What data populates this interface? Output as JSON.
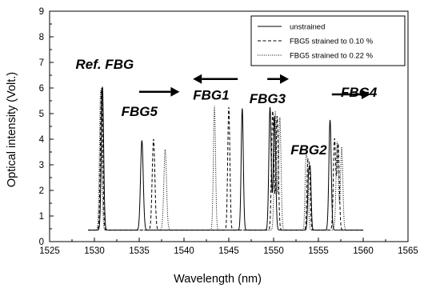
{
  "chart_data": {
    "type": "line",
    "xlabel": "Wavelength (nm)",
    "ylabel": "Optical intensity (Volt.)",
    "xlim": [
      1525,
      1565
    ],
    "ylim": [
      0,
      9
    ],
    "xticks": [
      1525,
      1530,
      1535,
      1540,
      1545,
      1550,
      1555,
      1560,
      1565
    ],
    "yticks": [
      0,
      1,
      2,
      3,
      4,
      5,
      6,
      7,
      8,
      9
    ],
    "grid": false,
    "legend_position": "top-right",
    "baseline": 0.45,
    "x_start": 1529.3,
    "x_end": 1560.0,
    "series": [
      {
        "name": "unstrained",
        "dash": "solid",
        "peaks": [
          [
            1530.9,
            6.05,
            0.13
          ],
          [
            1535.3,
            3.95,
            0.15
          ],
          [
            1546.5,
            5.2,
            0.12
          ],
          [
            1549.6,
            5.25,
            0.13
          ],
          [
            1550.1,
            4.9,
            0.13
          ],
          [
            1553.9,
            2.4,
            0.1
          ],
          [
            1554.1,
            2.6,
            0.1
          ],
          [
            1556.3,
            4.75,
            0.13
          ]
        ]
      },
      {
        "name": "FBG5 strained to 0.10 %",
        "dash": "dashed",
        "peaks": [
          [
            1530.8,
            6.0,
            0.13
          ],
          [
            1536.6,
            4.0,
            0.15
          ],
          [
            1545.0,
            5.25,
            0.12
          ],
          [
            1549.9,
            5.1,
            0.13
          ],
          [
            1550.4,
            4.9,
            0.13
          ],
          [
            1553.8,
            2.8,
            0.1
          ],
          [
            1554.0,
            2.6,
            0.1
          ],
          [
            1556.8,
            4.0,
            0.13
          ],
          [
            1557.2,
            3.8,
            0.13
          ]
        ]
      },
      {
        "name": "FBG5 strained to 0.22 %",
        "dash": "dotted",
        "peaks": [
          [
            1530.7,
            5.9,
            0.13
          ],
          [
            1537.9,
            3.6,
            0.15
          ],
          [
            1543.4,
            5.3,
            0.12
          ],
          [
            1550.2,
            5.1,
            0.13
          ],
          [
            1550.7,
            4.85,
            0.13
          ],
          [
            1553.6,
            3.0,
            0.1
          ],
          [
            1553.8,
            2.7,
            0.1
          ],
          [
            1557.1,
            3.9,
            0.13
          ],
          [
            1557.6,
            3.7,
            0.13
          ]
        ]
      }
    ],
    "annotations": [
      {
        "text": "Ref. FBG",
        "x": 1527.9,
        "y": 6.75
      },
      {
        "text": "FBG5",
        "x": 1533.0,
        "y": 4.9
      },
      {
        "text": "FBG1",
        "x": 1541.0,
        "y": 5.55
      },
      {
        "text": "FBG3",
        "x": 1547.3,
        "y": 5.4
      },
      {
        "text": "FBG2",
        "x": 1551.9,
        "y": 3.4
      },
      {
        "text": "FBG4",
        "x": 1557.5,
        "y": 5.65
      }
    ],
    "arrows": [
      {
        "direction": "right",
        "x_from": 1535.0,
        "x_to": 1539.5,
        "y": 5.85
      },
      {
        "direction": "left",
        "x_from": 1546.0,
        "x_to": 1541.0,
        "y": 6.35
      },
      {
        "direction": "right",
        "x_from": 1549.3,
        "x_to": 1551.7,
        "y": 6.35
      },
      {
        "direction": "right",
        "x_from": 1556.5,
        "x_to": 1560.8,
        "y": 5.75
      }
    ]
  }
}
